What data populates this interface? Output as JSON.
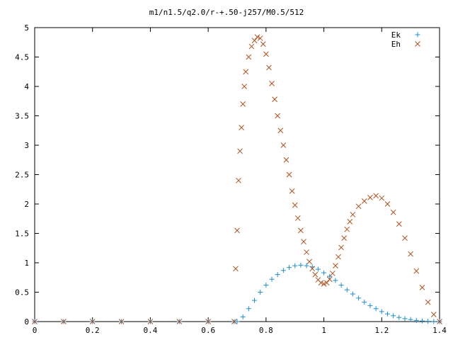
{
  "chart_data": {
    "type": "scatter",
    "title": "m1/n1.5/q2.0/r-+.50-j257/M0.5/512",
    "xlabel": "",
    "ylabel": "",
    "xlim": [
      0,
      1.4
    ],
    "ylim": [
      0,
      5
    ],
    "x_ticks": [
      "0",
      "0.2",
      "0.4",
      "0.6",
      "0.8",
      "1",
      "1.2",
      "1.4"
    ],
    "y_ticks": [
      "0",
      "0.5",
      "1",
      "1.5",
      "2",
      "2.5",
      "3",
      "3.5",
      "4",
      "4.5",
      "5"
    ],
    "grid": false,
    "legend_position": "top-right",
    "series": [
      {
        "name": "Ek",
        "marker": "plus",
        "color": "#1a8fdc",
        "points": [
          [
            0.0,
            0
          ],
          [
            0.1,
            0
          ],
          [
            0.2,
            0
          ],
          [
            0.3,
            0
          ],
          [
            0.4,
            0
          ],
          [
            0.5,
            0
          ],
          [
            0.6,
            0
          ],
          [
            0.69,
            0
          ],
          [
            0.7,
            0.0
          ],
          [
            0.72,
            0.08
          ],
          [
            0.74,
            0.22
          ],
          [
            0.76,
            0.36
          ],
          [
            0.78,
            0.5
          ],
          [
            0.8,
            0.62
          ],
          [
            0.82,
            0.72
          ],
          [
            0.84,
            0.8
          ],
          [
            0.86,
            0.87
          ],
          [
            0.88,
            0.92
          ],
          [
            0.9,
            0.95
          ],
          [
            0.92,
            0.96
          ],
          [
            0.94,
            0.95
          ],
          [
            0.96,
            0.93
          ],
          [
            0.98,
            0.89
          ],
          [
            1.0,
            0.83
          ],
          [
            1.02,
            0.77
          ],
          [
            1.04,
            0.7
          ],
          [
            1.06,
            0.62
          ],
          [
            1.08,
            0.54
          ],
          [
            1.1,
            0.47
          ],
          [
            1.12,
            0.4
          ],
          [
            1.14,
            0.33
          ],
          [
            1.16,
            0.27
          ],
          [
            1.18,
            0.22
          ],
          [
            1.2,
            0.17
          ],
          [
            1.22,
            0.13
          ],
          [
            1.24,
            0.1
          ],
          [
            1.26,
            0.07
          ],
          [
            1.28,
            0.05
          ],
          [
            1.3,
            0.035
          ],
          [
            1.32,
            0.02
          ],
          [
            1.34,
            0.01
          ],
          [
            1.36,
            0.005
          ],
          [
            1.38,
            0.002
          ],
          [
            1.4,
            0.0
          ]
        ]
      },
      {
        "name": "Eh",
        "marker": "cross",
        "color": "#b5501a",
        "points": [
          [
            0.0,
            0
          ],
          [
            0.1,
            0
          ],
          [
            0.2,
            0
          ],
          [
            0.3,
            0
          ],
          [
            0.4,
            0
          ],
          [
            0.5,
            0
          ],
          [
            0.6,
            0
          ],
          [
            0.69,
            0
          ],
          [
            0.695,
            0.9
          ],
          [
            0.7,
            1.55
          ],
          [
            0.705,
            2.4
          ],
          [
            0.71,
            2.9
          ],
          [
            0.715,
            3.3
          ],
          [
            0.72,
            3.7
          ],
          [
            0.725,
            4.0
          ],
          [
            0.73,
            4.25
          ],
          [
            0.74,
            4.5
          ],
          [
            0.75,
            4.68
          ],
          [
            0.76,
            4.78
          ],
          [
            0.77,
            4.84
          ],
          [
            0.78,
            4.82
          ],
          [
            0.79,
            4.72
          ],
          [
            0.8,
            4.55
          ],
          [
            0.81,
            4.32
          ],
          [
            0.82,
            4.05
          ],
          [
            0.83,
            3.78
          ],
          [
            0.84,
            3.5
          ],
          [
            0.85,
            3.25
          ],
          [
            0.86,
            3.0
          ],
          [
            0.87,
            2.75
          ],
          [
            0.88,
            2.5
          ],
          [
            0.89,
            2.22
          ],
          [
            0.9,
            1.98
          ],
          [
            0.91,
            1.76
          ],
          [
            0.92,
            1.55
          ],
          [
            0.93,
            1.36
          ],
          [
            0.94,
            1.18
          ],
          [
            0.95,
            1.02
          ],
          [
            0.96,
            0.9
          ],
          [
            0.97,
            0.8
          ],
          [
            0.98,
            0.71
          ],
          [
            0.99,
            0.66
          ],
          [
            1.0,
            0.64
          ],
          [
            1.01,
            0.66
          ],
          [
            1.02,
            0.72
          ],
          [
            1.03,
            0.82
          ],
          [
            1.04,
            0.95
          ],
          [
            1.05,
            1.1
          ],
          [
            1.06,
            1.26
          ],
          [
            1.07,
            1.42
          ],
          [
            1.08,
            1.57
          ],
          [
            1.09,
            1.7
          ],
          [
            1.1,
            1.82
          ],
          [
            1.12,
            1.96
          ],
          [
            1.14,
            2.05
          ],
          [
            1.16,
            2.11
          ],
          [
            1.18,
            2.14
          ],
          [
            1.2,
            2.1
          ],
          [
            1.22,
            2.0
          ],
          [
            1.24,
            1.86
          ],
          [
            1.26,
            1.66
          ],
          [
            1.28,
            1.42
          ],
          [
            1.3,
            1.15
          ],
          [
            1.32,
            0.86
          ],
          [
            1.34,
            0.58
          ],
          [
            1.36,
            0.33
          ],
          [
            1.38,
            0.12
          ],
          [
            1.4,
            0.0
          ]
        ]
      }
    ]
  }
}
